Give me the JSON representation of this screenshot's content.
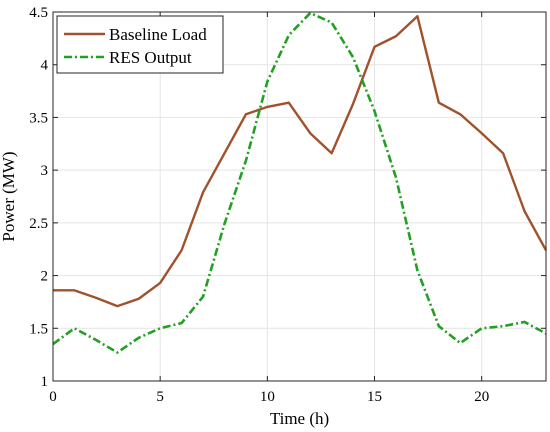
{
  "chart_data": {
    "type": "line",
    "title": "",
    "xlabel": "Time (h)",
    "ylabel": "Power (MW)",
    "xlim": [
      0,
      23
    ],
    "ylim": [
      1,
      4.5
    ],
    "xticks": [
      0,
      5,
      10,
      15,
      20
    ],
    "yticks": [
      1,
      1.5,
      2,
      2.5,
      3,
      3.5,
      4,
      4.5
    ],
    "xtick_labels": [
      "0",
      "5",
      "10",
      "15",
      "20"
    ],
    "ytick_labels": [
      "1",
      "1.5",
      "2",
      "2.5",
      "3",
      "3.5",
      "4",
      "4.5"
    ],
    "grid": true,
    "legend_position": "top-left",
    "x": [
      0,
      1,
      2,
      3,
      4,
      5,
      6,
      7,
      8,
      9,
      10,
      11,
      12,
      13,
      14,
      15,
      16,
      17,
      18,
      19,
      20,
      21,
      22,
      23
    ],
    "series": [
      {
        "name": "Baseline Load",
        "color": "#a0522d",
        "style": "solid",
        "values": [
          1.86,
          1.86,
          1.79,
          1.71,
          1.78,
          1.93,
          2.24,
          2.79,
          3.16,
          3.53,
          3.6,
          3.64,
          3.35,
          3.16,
          3.63,
          4.17,
          4.27,
          4.46,
          3.64,
          3.53,
          3.35,
          3.16,
          2.61,
          2.24
        ]
      },
      {
        "name": "RES Output",
        "color": "#22a022",
        "style": "dashdot",
        "values": [
          1.35,
          1.5,
          1.39,
          1.27,
          1.41,
          1.5,
          1.55,
          1.8,
          2.49,
          3.09,
          3.84,
          4.28,
          4.49,
          4.4,
          4.07,
          3.56,
          2.93,
          2.05,
          1.52,
          1.36,
          1.5,
          1.52,
          1.56,
          1.45
        ]
      }
    ]
  }
}
